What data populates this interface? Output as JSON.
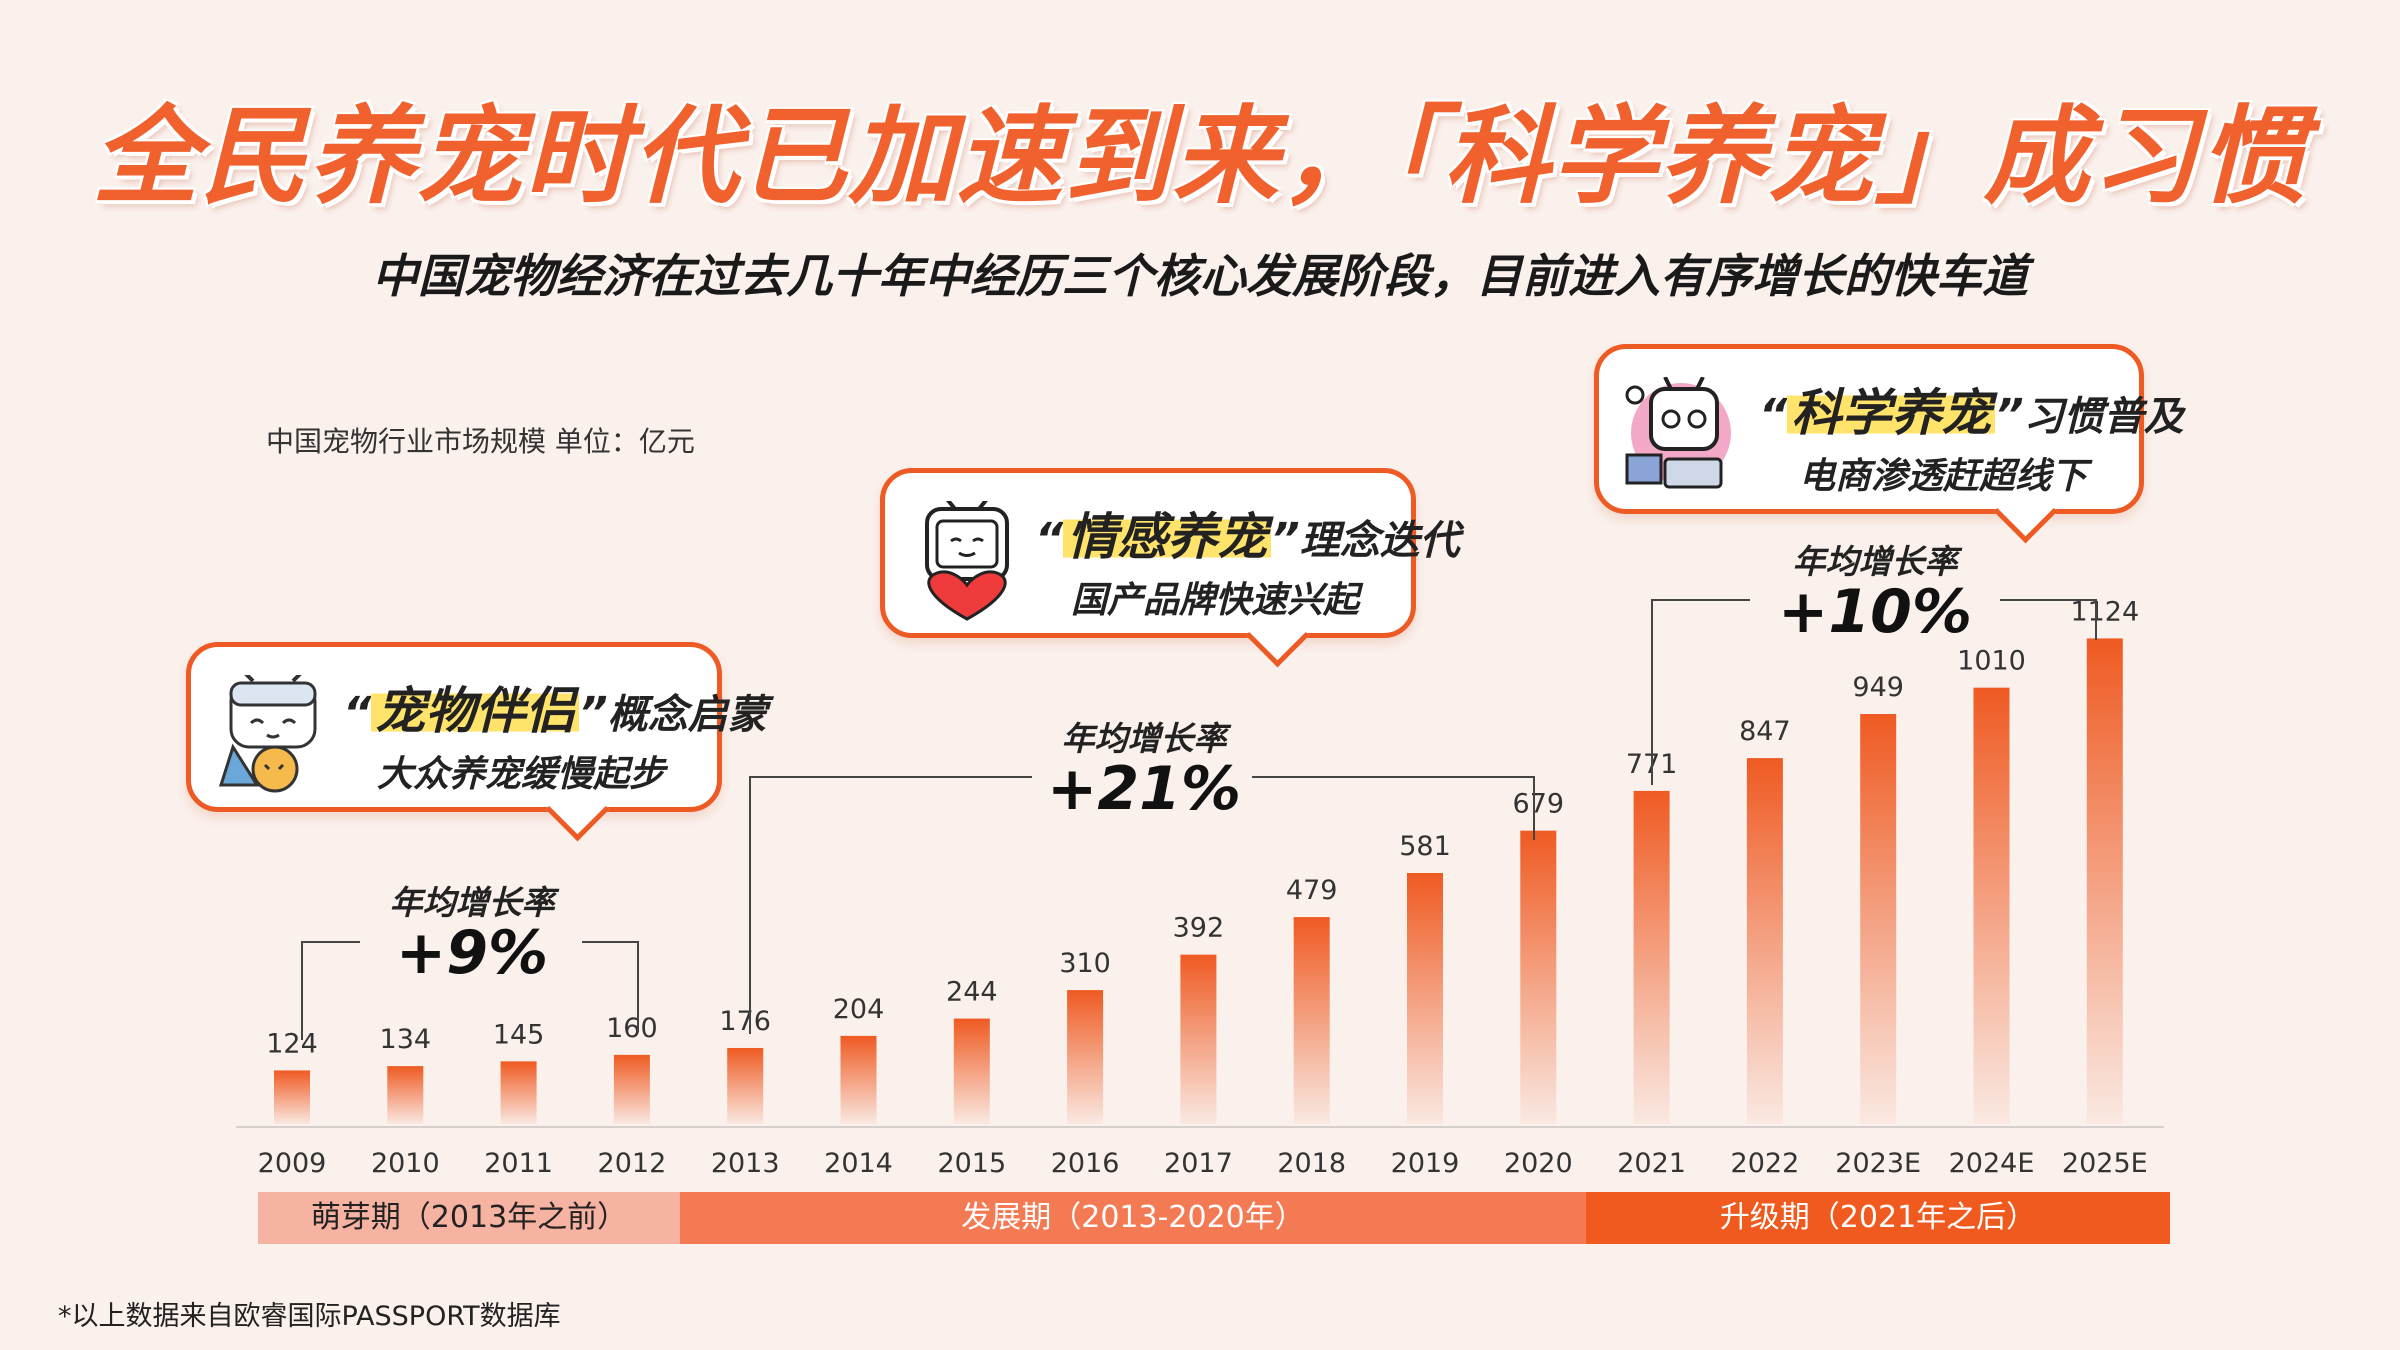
{
  "header": {
    "title": "全民养宠时代已加速到来，「科学养宠」成习惯",
    "subtitle": "中国宠物经济在过去几十年中经历三个核心发展阶段，目前进入有序增长的快车道"
  },
  "unit_label": "中国宠物行业市场规模 单位：亿元",
  "source_note": "*以上数据来自欧睿国际PASSPORT数据库",
  "colors": {
    "accent": "#ee5a24",
    "bar_top": "#ef5a22",
    "phase1": "#f7b3a2",
    "phase2": "#f47a53",
    "phase3": "#f05a1e",
    "highlight": "#ffe36b"
  },
  "chart_data": {
    "type": "bar",
    "categories": [
      "2009",
      "2010",
      "2011",
      "2012",
      "2013",
      "2014",
      "2015",
      "2016",
      "2017",
      "2018",
      "2019",
      "2020",
      "2021",
      "2022",
      "2023E",
      "2024E",
      "2025E"
    ],
    "values": [
      124,
      134,
      145,
      160,
      176,
      204,
      244,
      310,
      392,
      479,
      581,
      679,
      771,
      847,
      949,
      1010,
      1124
    ],
    "xlabel": "",
    "ylabel": ""
  },
  "phases": [
    {
      "label": "萌芽期（2013年之前）"
    },
    {
      "label": "发展期（2013-2020年）"
    },
    {
      "label": "升级期（2021年之后）"
    }
  ],
  "cagr": [
    {
      "label": "年均增长率",
      "value": "+9%"
    },
    {
      "label": "年均增长率",
      "value": "+21%"
    },
    {
      "label": "年均增长率",
      "value": "+10%"
    }
  ],
  "bubbles": [
    {
      "quote_open": "“",
      "highlight": "宠物伴侣",
      "quote_close": "”",
      "rest": "概念启蒙",
      "line2": "大众养宠缓慢起步"
    },
    {
      "quote_open": "“",
      "highlight": "情感养宠",
      "quote_close": "”",
      "rest": "理念迭代",
      "line2": "国产品牌快速兴起"
    },
    {
      "quote_open": "“",
      "highlight": "科学养宠",
      "quote_close": "”",
      "rest": "习惯普及",
      "line2": "电商渗透赶超线下"
    }
  ]
}
